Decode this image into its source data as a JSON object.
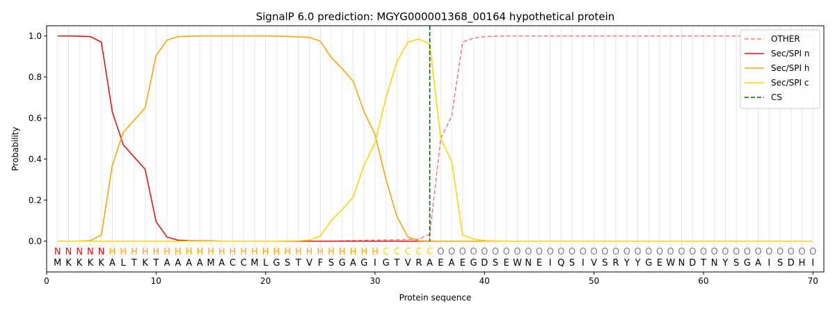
{
  "chart_data": {
    "type": "line",
    "title": "SignalP 6.0 prediction: MGYG000001368_00164 hypothetical protein",
    "xlabel": "Protein sequence",
    "ylabel": "Probability",
    "xlim": [
      0,
      71
    ],
    "ylim": [
      -0.15,
      1.05
    ],
    "xticks": [
      "0",
      "10",
      "20",
      "30",
      "40",
      "50",
      "60",
      "70"
    ],
    "yticks": [
      "0.0",
      "0.2",
      "0.4",
      "0.6",
      "0.8",
      "1.0"
    ],
    "legend_position": "top-right",
    "cleavage_site": 35,
    "sequence": "MKKKKALTKTAAAAMACCMLGSTVFSGAGIGTVRAEAEGDSEWNEIQSIVSRYYGEWNDTNYSGAISDHI",
    "labels": "NNNNNHHHHHHHHHHHHHHHHHHHHHHHHHCCCCCOOOOOOOOOOOOOOOOOOOOOOOOOOOOOOOOOOO",
    "label_colors": {
      "N": "#ff0000",
      "H": "#ffa500",
      "C": "#ffd700",
      "O": "#808080"
    },
    "series": [
      {
        "name": "OTHER",
        "color": "#f08080",
        "dash": true,
        "values": [
          0,
          0,
          0,
          0,
          0,
          0,
          0,
          0,
          0,
          0,
          0,
          0,
          0,
          0,
          0,
          0,
          0,
          0,
          0,
          0,
          0,
          0,
          0,
          0,
          0,
          0,
          0.002,
          0.003,
          0.004,
          0.005,
          0.006,
          0.007,
          0.008,
          0.01,
          0.035,
          0.5,
          0.61,
          0.97,
          0.99,
          0.997,
          0.999,
          1,
          1,
          1,
          1,
          1,
          1,
          1,
          1,
          1,
          1,
          1,
          1,
          1,
          1,
          1,
          1,
          1,
          1,
          1,
          1,
          1,
          1,
          1,
          1,
          1,
          1,
          1,
          1,
          1
        ]
      },
      {
        "name": "Sec/SPI n",
        "color": "#ee1111",
        "dash": false,
        "values": [
          1,
          1,
          0.999,
          0.997,
          0.97,
          0.63,
          0.47,
          0.41,
          0.35,
          0.095,
          0.02,
          0.005,
          0.002,
          0.001,
          0.001,
          0,
          0,
          0,
          0,
          0,
          0,
          0,
          0,
          0,
          0,
          0,
          0,
          0,
          0,
          0,
          0,
          0,
          0,
          0,
          0,
          0,
          0,
          0,
          0,
          0,
          0,
          0,
          0,
          0,
          0,
          0,
          0,
          0,
          0,
          0,
          0,
          0,
          0,
          0,
          0,
          0,
          0,
          0,
          0,
          0,
          0,
          0,
          0,
          0,
          0,
          0,
          0,
          0,
          0,
          0
        ]
      },
      {
        "name": "Sec/SPI h",
        "color": "#ffa500",
        "dash": false,
        "values": [
          0,
          0,
          0,
          0.003,
          0.03,
          0.37,
          0.53,
          0.59,
          0.65,
          0.905,
          0.98,
          0.997,
          0.999,
          1,
          1,
          1,
          1,
          1,
          1,
          1,
          0.999,
          0.998,
          0.996,
          0.993,
          0.975,
          0.895,
          0.84,
          0.78,
          0.63,
          0.52,
          0.3,
          0.12,
          0.02,
          0.002,
          0.001,
          0,
          0,
          0,
          0,
          0,
          0,
          0,
          0,
          0,
          0,
          0,
          0,
          0,
          0,
          0,
          0,
          0,
          0,
          0,
          0,
          0,
          0,
          0,
          0,
          0,
          0,
          0,
          0,
          0,
          0,
          0,
          0,
          0,
          0,
          0
        ]
      },
      {
        "name": "Sec/SPI c",
        "color": "#ffd700",
        "dash": false,
        "values": [
          0,
          0,
          0,
          0,
          0,
          0,
          0,
          0,
          0,
          0,
          0,
          0,
          0,
          0,
          0,
          0,
          0,
          0,
          0,
          0,
          0,
          0.001,
          0.002,
          0.005,
          0.025,
          0.1,
          0.155,
          0.215,
          0.37,
          0.48,
          0.7,
          0.875,
          0.97,
          0.985,
          0.96,
          0.5,
          0.39,
          0.03,
          0.01,
          0.003,
          0.001,
          0,
          0,
          0,
          0,
          0,
          0,
          0,
          0,
          0,
          0,
          0,
          0,
          0,
          0,
          0,
          0,
          0,
          0,
          0,
          0,
          0,
          0,
          0,
          0,
          0,
          0,
          0,
          0,
          0
        ]
      }
    ],
    "cs_legend": {
      "name": "CS",
      "color": "#006400"
    }
  }
}
